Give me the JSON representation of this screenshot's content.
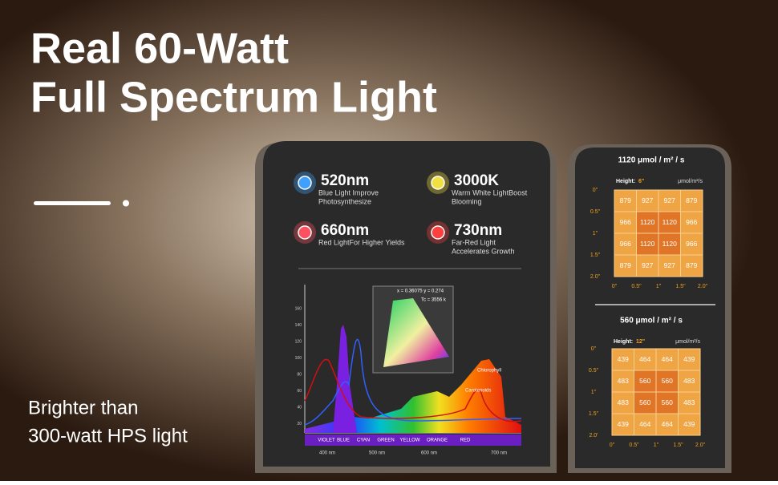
{
  "header": {
    "title": [
      "Real 60-Watt",
      "Full Spectrum Light"
    ],
    "subtitle": [
      "Brighter than",
      "300-watt HPS light"
    ]
  },
  "features": [
    {
      "value": "520nm",
      "desc": [
        "Blue Light Improve",
        "Photosynthesize"
      ]
    },
    {
      "value": "3000K",
      "desc": [
        "Warm White LightBoost",
        "Blooming"
      ]
    },
    {
      "value": "660nm",
      "desc": [
        "Red LightFor Higher Yields"
      ]
    },
    {
      "value": "730nm",
      "desc": [
        "Far-Red Light",
        "Accelerates Growth"
      ]
    }
  ],
  "spectrum": {
    "bands": [
      "VIOLET",
      "BLUE",
      "CYAN",
      "GREEN",
      "YELLOW",
      "ORANGE",
      "RED"
    ],
    "x_labels": [
      "400 nm",
      "500 nm",
      "600 nm",
      "700 nm"
    ],
    "y_labels": [
      "160",
      "140",
      "120",
      "100",
      "80",
      "60",
      "40",
      "20"
    ],
    "annotations": [
      "Chlorophyll",
      "Carotenoids"
    ],
    "cie": [
      "x = 0.36075 y = 0.274",
      "Tc = 3556 k"
    ]
  },
  "grids": [
    {
      "title": "1120 μmol / m² / s",
      "height_label": "Height:",
      "height": "6\"",
      "unit": "μmol/m²/s",
      "row_labels": [
        "0\"",
        "0.5\"",
        "1\"",
        "1.5\"",
        "2.0\""
      ],
      "col_labels": [
        "0\"",
        "0.5\"",
        "1\"",
        "1.5\"",
        "2.0\""
      ],
      "cells": [
        [
          "879",
          "927",
          "927",
          "879"
        ],
        [
          "966",
          "1120",
          "1120",
          "966"
        ],
        [
          "966",
          "1120",
          "1120",
          "966"
        ],
        [
          "879",
          "927",
          "927",
          "879"
        ]
      ]
    },
    {
      "title": "560  μmol / m² / s",
      "height_label": "Height:",
      "height": "12\"",
      "unit": "μmol/m²/s",
      "row_labels": [
        "0\"",
        "0.5\"",
        "1\"",
        "1.5\"",
        "2.0'"
      ],
      "col_labels": [
        "0\"",
        "0.5\"",
        "1\"",
        "1.5\"",
        "2.0\""
      ],
      "cells": [
        [
          "439",
          "464",
          "464",
          "439"
        ],
        [
          "483",
          "560",
          "560",
          "483"
        ],
        [
          "483",
          "560",
          "560",
          "483"
        ],
        [
          "439",
          "464",
          "464",
          "439"
        ]
      ]
    }
  ]
}
